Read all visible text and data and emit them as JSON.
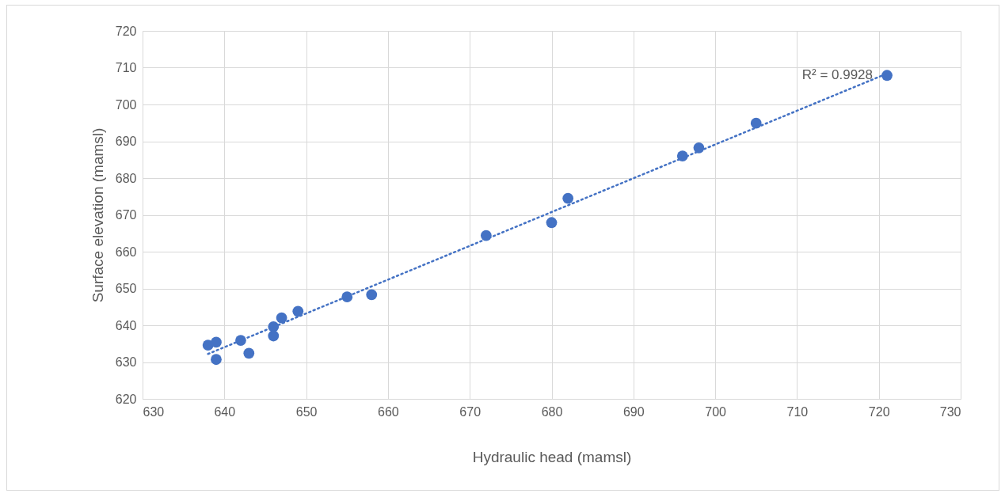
{
  "chart_data": {
    "type": "scatter",
    "xlabel": "Hydraulic head (mamsl)",
    "ylabel": "Surface elevation (mamsl)",
    "xlim": [
      630,
      730
    ],
    "xticks": [
      630,
      640,
      650,
      660,
      670,
      680,
      690,
      700,
      710,
      720,
      730
    ],
    "ylim": [
      620,
      720
    ],
    "yticks": [
      620,
      630,
      640,
      650,
      660,
      670,
      680,
      690,
      700,
      710,
      720
    ],
    "grid": true,
    "marker": "circle",
    "annotations": [
      {
        "text": "R² = 0.9928",
        "x": 721,
        "y": 708
      }
    ],
    "series": [
      {
        "color": "#4472c4",
        "x": [
          638,
          639,
          639,
          642,
          643,
          646,
          646,
          647,
          649,
          655,
          658,
          672,
          680,
          682,
          696,
          698,
          705,
          721
        ],
        "values": [
          634.6,
          635.4,
          630.7,
          635.9,
          632.4,
          639.6,
          637.1,
          642,
          643.8,
          647.7,
          648.3,
          664.4,
          667.9,
          674.5,
          686,
          688.2,
          694.9,
          707.9
        ]
      },
      {
        "type": "line",
        "line_style": "dotted",
        "marker": "none",
        "color": "#4472c4",
        "x": [
          638,
          721
        ],
        "values": [
          632.2,
          708.4
        ]
      }
    ]
  }
}
